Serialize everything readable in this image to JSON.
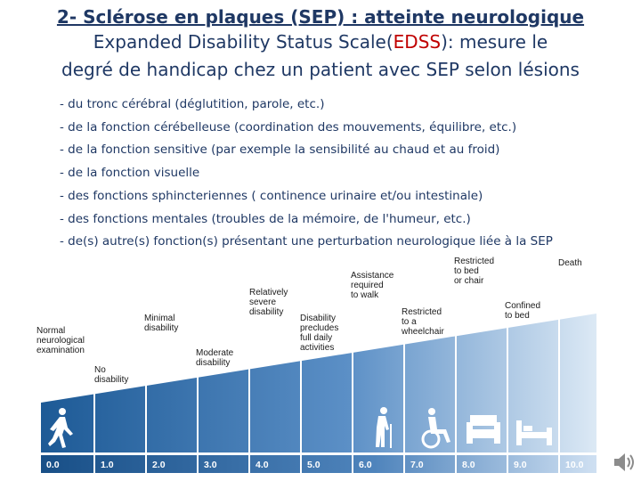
{
  "title": {
    "line1": "2- Sclérose en plaques (SEP) : atteinte neurologique",
    "line2_before": "Expanded Disability Status Scale(",
    "line2_highlight": "EDSS",
    "line2_after": "): mesure le",
    "line3": "degré de handicap chez un patient avec SEP selon lésions"
  },
  "bullets": [
    "- du tronc cérébral (déglutition,  parole, etc.)",
    "- de la fonction cérébelleuse (coordination des mouvements, équilibre, etc.)",
    "- de la fonction sensitive (par exemple la sensibilité au chaud et au froid)",
    "- de la fonction visuelle",
    "- des fonctions sphincteriennes ( continence urinaire et/ou intestinale)",
    "- des fonctions mentales (troubles de la mémoire, de l'humeur, etc.)",
    "- de(s) autre(s) fonction(s) présentant une perturbation neurologique liée à la  SEP"
  ],
  "scale": {
    "labels": [
      [
        "Normal",
        "neurological",
        "examination"
      ],
      [
        "No",
        "disability"
      ],
      [
        "Minimal",
        "disability"
      ],
      [
        "Moderate",
        "disability"
      ],
      [
        "Relatively",
        "severe",
        "disability"
      ],
      [
        "Disability",
        "precludes",
        "full daily",
        "activities"
      ],
      [
        "Assistance",
        "required",
        "to walk"
      ],
      [
        "Restricted",
        "to a",
        "wheelchair"
      ],
      [
        "Restricted",
        "to bed",
        "or chair"
      ],
      [
        "Confined",
        "to bed"
      ],
      [
        "Death"
      ]
    ],
    "values": [
      "0.0",
      "1.0",
      "2.0",
      "3.0",
      "4.0",
      "5.0",
      "6.0",
      "7.0",
      "8.0",
      "9.0",
      "10.0"
    ],
    "colors": {
      "dark": "#1d5a96",
      "mid": "#5b8fc6",
      "light": "#dce9f5",
      "strip_dark": "#184f87",
      "strip_light": "#cfe0f2"
    },
    "icons": [
      "walking-person-icon",
      "person-with-cane-icon",
      "wheelchair-icon",
      "armchair-icon",
      "bed-icon"
    ]
  },
  "speaker_icon": "speaker-icon"
}
